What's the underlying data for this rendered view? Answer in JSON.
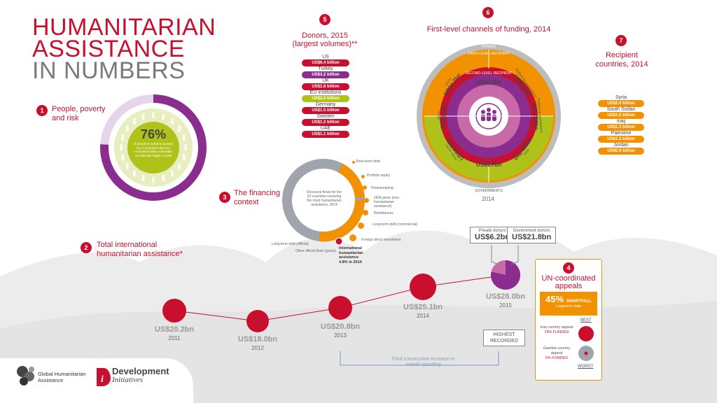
{
  "title": {
    "line1": "HUMANITARIAN",
    "line2": "ASSISTANCE",
    "line3": "IN NUMBERS"
  },
  "sections": {
    "s1": {
      "num": "1",
      "label": "People, poverty and risk"
    },
    "s2": {
      "num": "2",
      "label": "Total international humanitarian assistance*"
    },
    "s3": {
      "num": "3",
      "label": "The financing context"
    },
    "s4": {
      "num": "4",
      "label": "UN-coordinated appeals"
    },
    "s5": {
      "num": "5",
      "label": "Donors, 2015",
      "sub": "(largest volumes)**"
    },
    "s6": {
      "num": "6",
      "label": "First-level channels of funding, 2014"
    },
    "s7": {
      "num": "7",
      "label": "Recipient countries, 2014"
    }
  },
  "poverty": {
    "percent": "76%",
    "percent_value": 76,
    "text": "of people in extreme poverty live in countries that are environmentally vulnerable or politically fragile or both"
  },
  "donors": [
    {
      "name": "US",
      "value": "US$6.4 billion",
      "color": "#c8102e"
    },
    {
      "name": "Turkey",
      "value": "US$3.2 billion",
      "color": "#8b2d8f"
    },
    {
      "name": "UK",
      "value": "US$2.8 billion",
      "color": "#c8102e"
    },
    {
      "name": "EU institutions",
      "value": "US$2.0 billion",
      "color": "#aec21a"
    },
    {
      "name": "Germany",
      "value": "US$1.5 billion",
      "color": "#c8102e"
    },
    {
      "name": "Sweden",
      "value": "US$1.2 billion",
      "color": "#c8102e"
    },
    {
      "name": "UAE",
      "value": "US$1.1 billion",
      "color": "#c8102e"
    }
  ],
  "channels": {
    "private": "PRIVATE",
    "governments": "GOVERNMENTS",
    "first_level": "FIRST-LEVEL RECIPIENT",
    "second_level": "SECOND-LEVEL RECIPIENT",
    "year": "2014",
    "items": [
      {
        "label": "NGOs",
        "value": "US$4.7bn"
      },
      {
        "label": "RCRC",
        "value": "US$0.3bn"
      },
      {
        "label": "Multilateral organisations",
        "value": "US$0.5bn"
      },
      {
        "label": "NGOs",
        "value": "US$3.2bn"
      },
      {
        "label": "Multilateral organisations",
        "value": "US$13.9bn"
      },
      {
        "label": "Public sector",
        "value": "US$1.9bn"
      },
      {
        "label": "RCRC",
        "value": "US$1.7bn"
      },
      {
        "label": "Other",
        "value": "US$0.7bn"
      }
    ]
  },
  "recipients": [
    {
      "name": "Syria",
      "value": "US$2.0 billion"
    },
    {
      "name": "South Sudan",
      "value": "US$1.5 billion"
    },
    {
      "name": "Iraq",
      "value": "US$1.3 billion"
    },
    {
      "name": "Palestine",
      "value": "US$1.2 billion"
    },
    {
      "name": "Jordan",
      "value": "US$0.9 billion"
    }
  ],
  "financing": {
    "center_text": "Resource flows for the 20 countries receiving the most humanitarian assistance, 2014",
    "labels": [
      "Short-term debt",
      "Portfolio equity",
      "Peacekeeping",
      "ODA gross (non-humanitarian assistance)",
      "Remittances",
      "Long-term debt (commercial)",
      "Foreign direct investment",
      "Long-term debt (official)",
      "Other official flows (gross)"
    ],
    "iha_label": "International humanitarian assistance",
    "iha_share": "4.8% in 2014"
  },
  "timeline": {
    "points": [
      {
        "year": "2011",
        "value": "US$20.2bn"
      },
      {
        "year": "2012",
        "value": "US$18.0bn"
      },
      {
        "year": "2013",
        "value": "US$20.8bn"
      },
      {
        "year": "2014",
        "value": "US$25.1bn"
      },
      {
        "year": "2015",
        "value": "US$28.0bn"
      }
    ],
    "private_label": "Private donors",
    "private_value": "US$6.2bn",
    "gov_label": "Government donors",
    "gov_value": "US$21.8bn",
    "highest": "HIGHEST RECORDED",
    "third": "Third consecutive increase in overall spending"
  },
  "appeals": {
    "shortfall_pct": "45%",
    "shortfall_word": "SHORTFALL",
    "shortfall_sub": "Largest to date",
    "best": "BEST",
    "worst": "WORST",
    "iraq": "Iraq country appeal",
    "iraq_funded": "74% FUNDED",
    "gambia": "Gambia country appeal",
    "gambia_funded": "5% FUNDED"
  },
  "logos": {
    "gha": "Global Humanitarian Assistance",
    "di_1": "Development",
    "di_2": "Initiatives"
  },
  "colors": {
    "red": "#c8102e",
    "purple": "#8b2d8f",
    "green": "#aec21a",
    "orange": "#f39200",
    "grey": "#9b9b9b"
  }
}
